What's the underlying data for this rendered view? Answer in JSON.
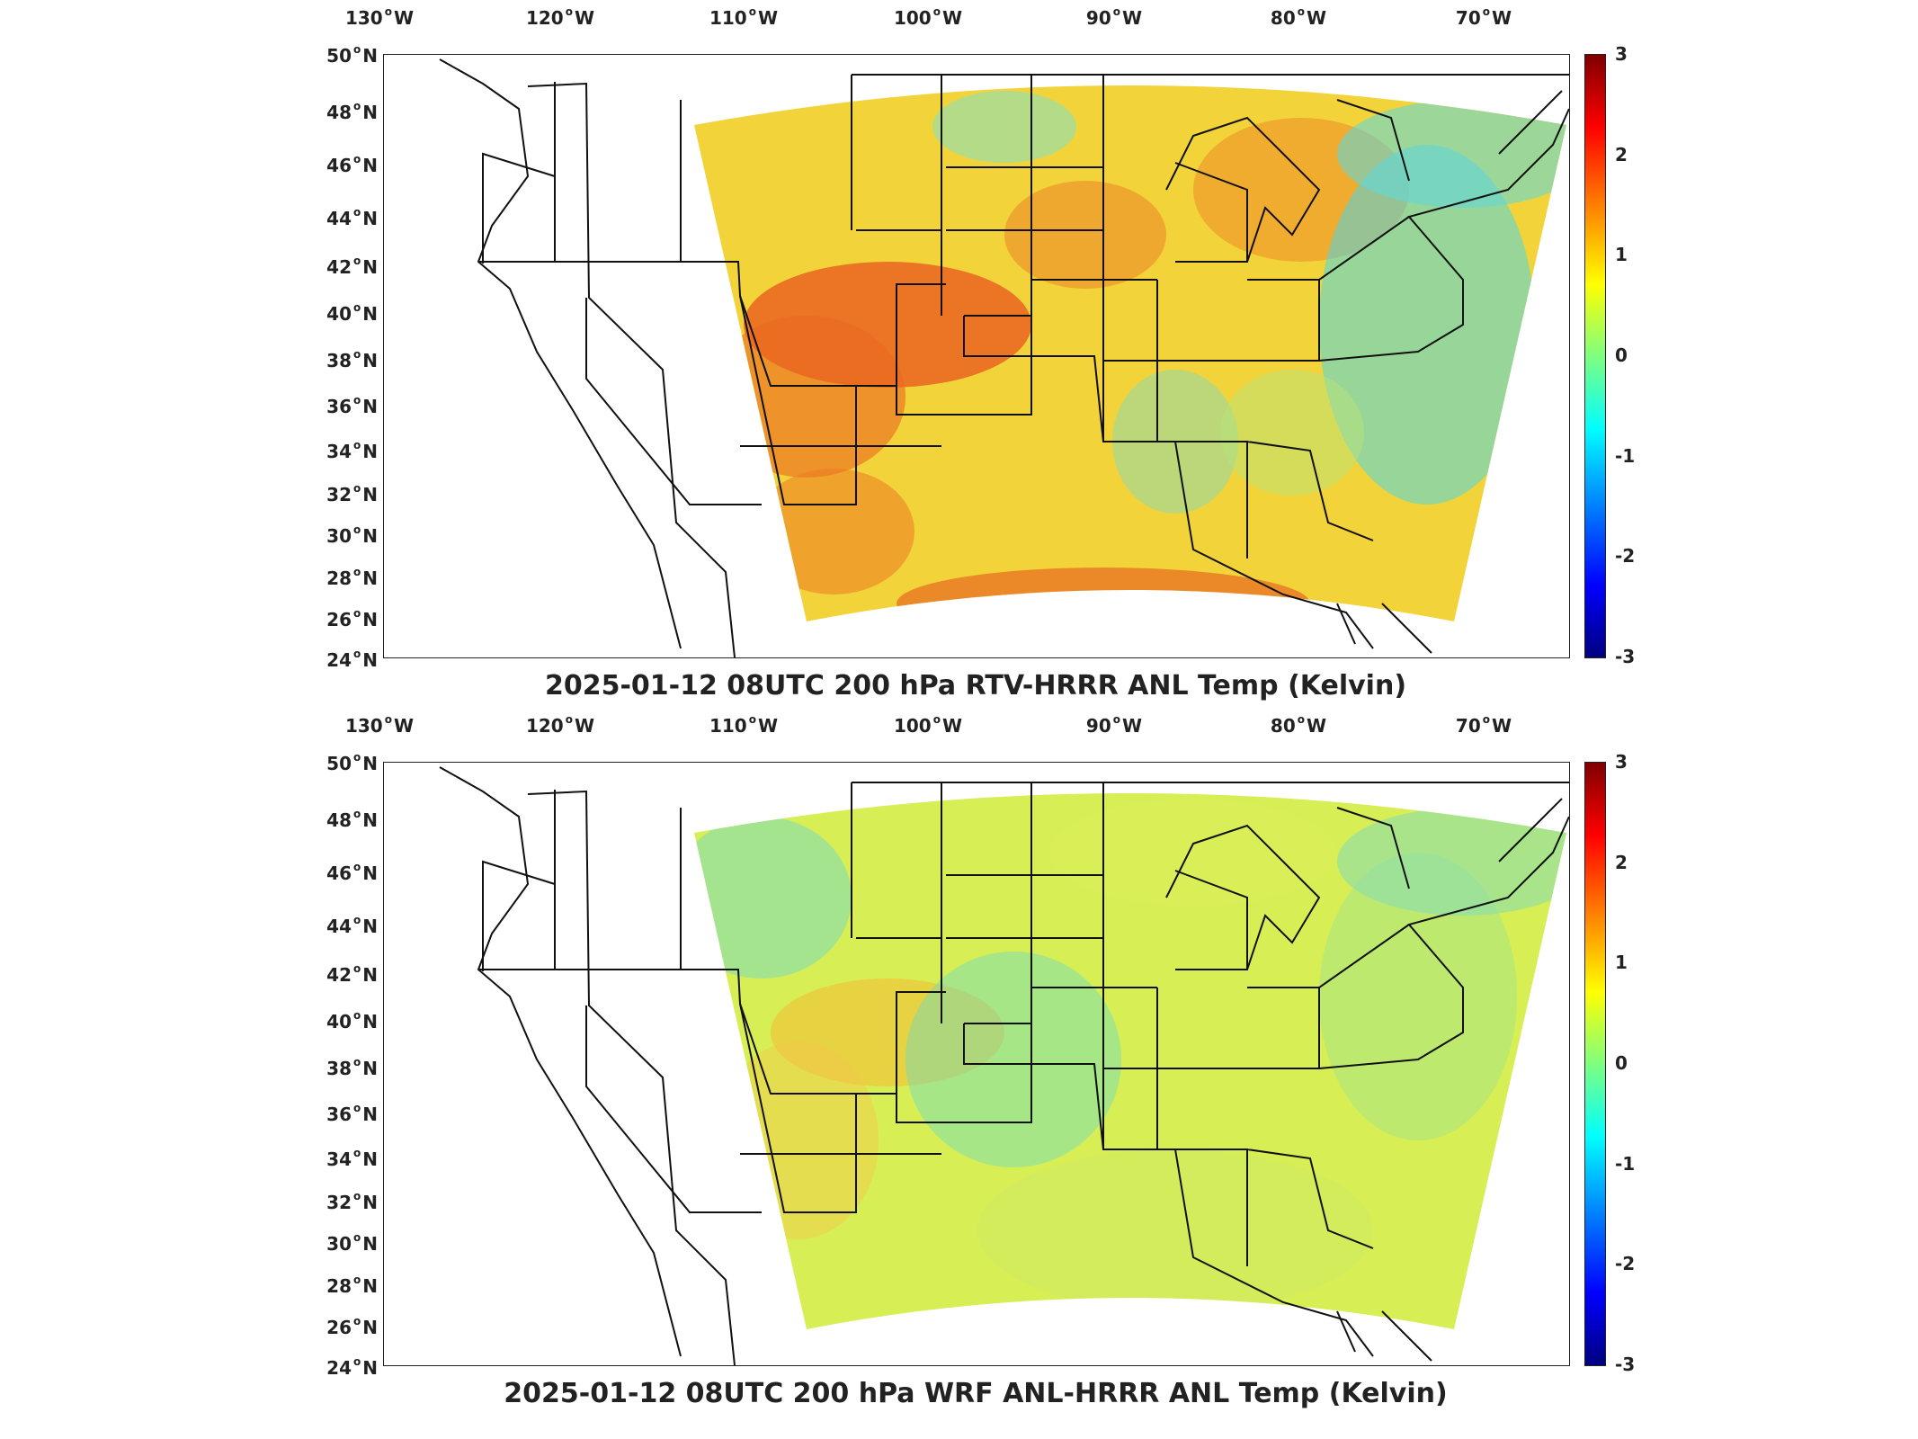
{
  "lon_labels": [
    {
      "deg": "130",
      "hemi": "W"
    },
    {
      "deg": "120",
      "hemi": "W"
    },
    {
      "deg": "110",
      "hemi": "W"
    },
    {
      "deg": "100",
      "hemi": "W"
    },
    {
      "deg": "90",
      "hemi": "W"
    },
    {
      "deg": "80",
      "hemi": "W"
    },
    {
      "deg": "70",
      "hemi": "W"
    }
  ],
  "lat_labels": [
    {
      "deg": "50",
      "hemi": "N"
    },
    {
      "deg": "48",
      "hemi": "N"
    },
    {
      "deg": "46",
      "hemi": "N"
    },
    {
      "deg": "44",
      "hemi": "N"
    },
    {
      "deg": "42",
      "hemi": "N"
    },
    {
      "deg": "40",
      "hemi": "N"
    },
    {
      "deg": "38",
      "hemi": "N"
    },
    {
      "deg": "36",
      "hemi": "N"
    },
    {
      "deg": "34",
      "hemi": "N"
    },
    {
      "deg": "32",
      "hemi": "N"
    },
    {
      "deg": "30",
      "hemi": "N"
    },
    {
      "deg": "28",
      "hemi": "N"
    },
    {
      "deg": "26",
      "hemi": "N"
    },
    {
      "deg": "24",
      "hemi": "N"
    }
  ],
  "colorbar_ticks": [
    "3",
    "2",
    "1",
    "0",
    "-1",
    "-2",
    "-3"
  ],
  "colorbar": {
    "min": -3,
    "max": 3,
    "colormap": "jet"
  },
  "panels": [
    {
      "title": "2025-01-12 08UTC 200 hPa RTV-HRRR ANL Temp (Kelvin)",
      "pattern": "warm"
    },
    {
      "title": "2025-01-12 08UTC 200 hPa WRF ANL-HRRR ANL Temp (Kelvin)",
      "pattern": "mild"
    }
  ],
  "colors": {
    "outline": "#111111",
    "warm_base": "#f2d43a",
    "mild_base": "#d7ee55"
  }
}
